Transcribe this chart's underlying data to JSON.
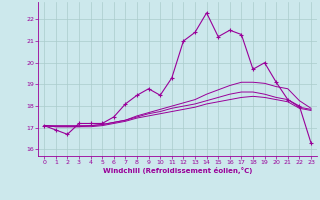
{
  "xlabel": "Windchill (Refroidissement éolien,°C)",
  "background_color": "#cce8ec",
  "grid_color": "#aacccc",
  "line_color": "#990099",
  "xlim": [
    -0.5,
    23.5
  ],
  "ylim": [
    15.7,
    22.8
  ],
  "yticks": [
    16,
    17,
    18,
    19,
    20,
    21,
    22
  ],
  "xticks": [
    0,
    1,
    2,
    3,
    4,
    5,
    6,
    7,
    8,
    9,
    10,
    11,
    12,
    13,
    14,
    15,
    16,
    17,
    18,
    19,
    20,
    21,
    22,
    23
  ],
  "series": {
    "main": [
      17.1,
      16.9,
      16.7,
      17.2,
      17.2,
      17.2,
      17.5,
      18.1,
      18.5,
      18.8,
      18.5,
      19.3,
      21.0,
      21.4,
      22.3,
      21.2,
      21.5,
      21.3,
      19.7,
      20.0,
      19.1,
      18.3,
      18.0,
      16.3
    ],
    "line1": [
      17.1,
      17.1,
      17.1,
      17.1,
      17.1,
      17.15,
      17.25,
      17.35,
      17.55,
      17.7,
      17.85,
      18.0,
      18.15,
      18.3,
      18.55,
      18.75,
      18.95,
      19.1,
      19.1,
      19.05,
      18.9,
      18.8,
      18.25,
      17.9
    ],
    "line2": [
      17.1,
      17.05,
      17.05,
      17.05,
      17.1,
      17.15,
      17.25,
      17.35,
      17.5,
      17.65,
      17.75,
      17.9,
      18.0,
      18.1,
      18.25,
      18.4,
      18.55,
      18.65,
      18.65,
      18.55,
      18.4,
      18.3,
      17.95,
      17.85
    ],
    "line3": [
      17.1,
      17.05,
      17.05,
      17.05,
      17.05,
      17.1,
      17.2,
      17.3,
      17.45,
      17.55,
      17.65,
      17.75,
      17.85,
      17.95,
      18.1,
      18.2,
      18.3,
      18.4,
      18.45,
      18.4,
      18.3,
      18.2,
      17.9,
      17.8
    ]
  }
}
